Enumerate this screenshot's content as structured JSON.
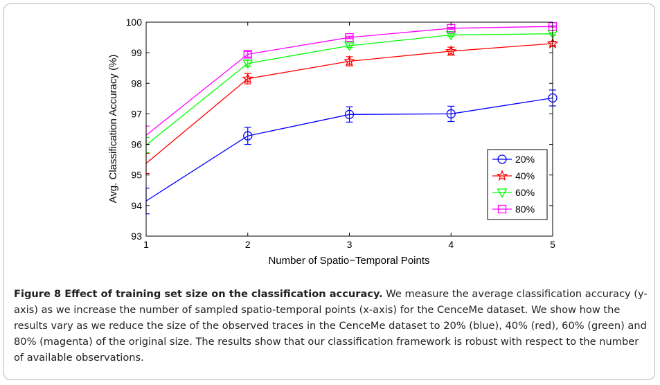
{
  "chart_data": {
    "type": "line",
    "title": "",
    "xlabel": "Number of Spatio−Temporal Points",
    "ylabel": "Avg. Classification Accuracy (%)",
    "xlim": [
      1,
      5
    ],
    "ylim": [
      93,
      100
    ],
    "x_ticks": [
      "1",
      "2",
      "3",
      "4",
      "5"
    ],
    "y_ticks": [
      "93",
      "94",
      "95",
      "96",
      "97",
      "98",
      "99",
      "100"
    ],
    "grid": false,
    "legend_position": "right-middle",
    "x": [
      1,
      2,
      3,
      4,
      5
    ],
    "series": [
      {
        "name": "20%",
        "color": "#0000ff",
        "marker": "circle",
        "values": [
          94.15,
          96.28,
          96.98,
          97.0,
          97.52
        ],
        "errors": [
          0.42,
          0.28,
          0.25,
          0.25,
          0.26
        ]
      },
      {
        "name": "40%",
        "color": "#ff0000",
        "marker": "star",
        "values": [
          95.38,
          98.15,
          98.72,
          99.05,
          99.3
        ],
        "errors": [
          0.33,
          0.17,
          0.15,
          0.13,
          0.07
        ]
      },
      {
        "name": "60%",
        "color": "#00ff00",
        "marker": "triangle-down",
        "values": [
          95.98,
          98.65,
          99.23,
          99.58,
          99.62
        ],
        "errors": [
          0.25,
          0.1,
          0.06,
          0.05,
          0.04
        ]
      },
      {
        "name": "80%",
        "color": "#ff00ff",
        "marker": "square",
        "values": [
          96.3,
          98.95,
          99.5,
          99.8,
          99.86
        ],
        "errors": [
          0.3,
          0.09,
          0.04,
          0.03,
          0.02
        ]
      }
    ]
  },
  "caption": {
    "title": "Figure 8  Effect of training set size on the classification accuracy.",
    "body": " We measure the average classification accuracy (y-axis) as we increase the number of sampled spatio-temporal points (x-axis) for the CenceMe dataset. We show how the results vary as we reduce the size of the observed traces in the CenceMe dataset to 20% (blue), 40% (red), 60% (green) and 80% (magenta) of the original size. The results show that our classification framework is robust with respect to the number of available observations."
  }
}
